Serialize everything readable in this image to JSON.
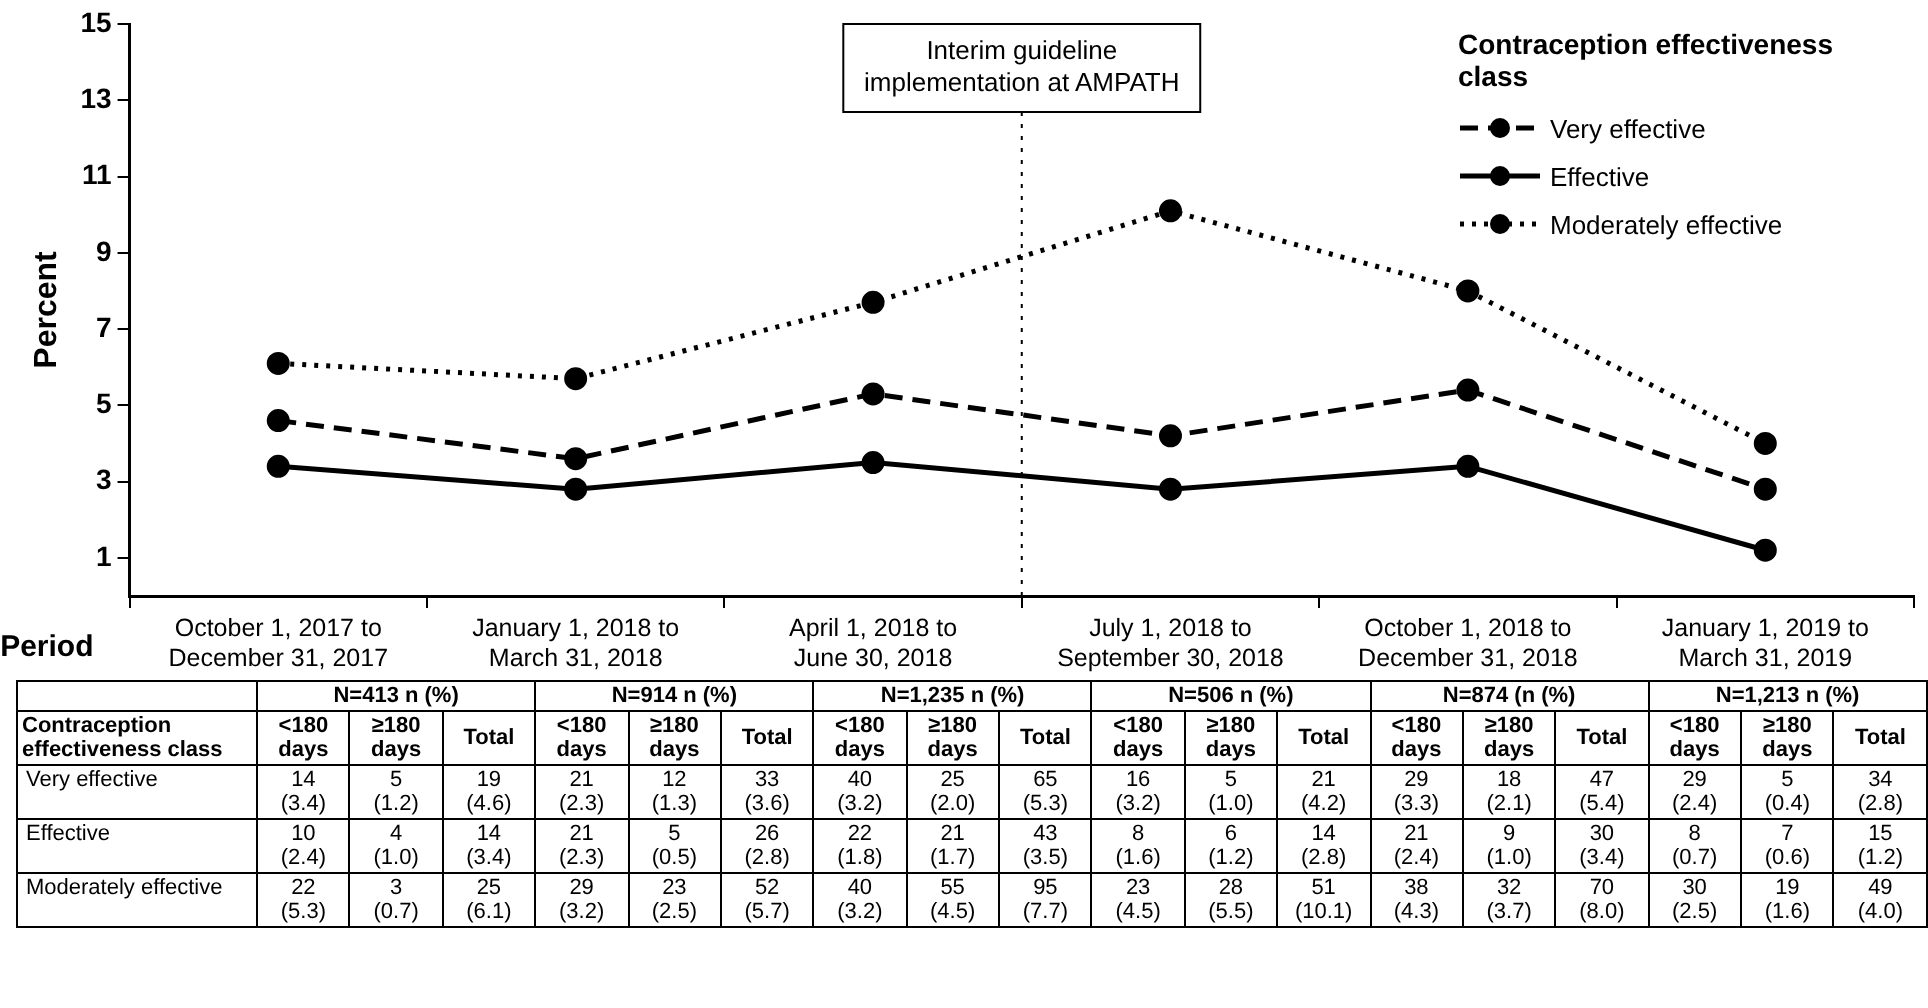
{
  "chart_data": {
    "type": "line",
    "ylabel": "Percent",
    "xlabel": "Period",
    "legend_title": "Contraception effectiveness class",
    "categories": [
      "October 1, 2017 to December 31, 2017",
      "January 1, 2018 to March 31, 2018",
      "April 1, 2018 to June 30, 2018",
      "July 1, 2018 to September 30, 2018",
      "October 1, 2018 to December 31, 2018",
      "January 1, 2019 to March 31, 2019"
    ],
    "series": [
      {
        "name": "Very effective",
        "color": "#000000",
        "line_style": "dashed",
        "values": [
          4.6,
          3.6,
          5.3,
          4.2,
          5.4,
          2.8
        ]
      },
      {
        "name": "Effective",
        "color": "#000000",
        "line_style": "solid",
        "values": [
          3.4,
          2.8,
          3.5,
          2.8,
          3.4,
          1.2
        ]
      },
      {
        "name": "Moderately effective",
        "color": "#000000",
        "line_style": "dotted",
        "values": [
          6.1,
          5.7,
          7.7,
          10.1,
          8.0,
          4.0
        ]
      }
    ],
    "ylim": [
      0,
      15
    ],
    "yticks": [
      1,
      3,
      5,
      7,
      9,
      11,
      13,
      15
    ],
    "grid": false,
    "legend": "top right",
    "marker": "circle",
    "annotations": [
      "Interim guideline implementation at AMPATH",
      "N=413 n (%)",
      "N=914 n (%)",
      "N=1,235 n (%)",
      "N=506 n (%)",
      "N=874 (n (%)",
      "N=1,213 n (%)",
      "Contraception effectiveness class",
      "<180 days",
      "≥180 days",
      "Total",
      "14 (3.4)",
      "5 (1.2)",
      "19 (4.6)",
      "21 (2.3)",
      "12 (1.3)",
      "33 (3.6)",
      "40 (3.2)",
      "25 (2.0)",
      "65 (5.3)",
      "16 (3.2)",
      "5 (1.0)",
      "21 (4.2)",
      "29 (3.3)",
      "18 (2.1)",
      "47 (5.4)",
      "29 (2.4)",
      "5 (0.4)",
      "34 (2.8)",
      "10 (2.4)",
      "4 (1.0)",
      "14 (3.4)",
      "21 (2.3)",
      "5 (0.5)",
      "26 (2.8)",
      "22 (1.8)",
      "21 (1.7)",
      "43 (3.5)",
      "8 (1.6)",
      "6 (1.2)",
      "14 (2.8)",
      "21 (2.4)",
      "9 (1.0)",
      "30 (3.4)",
      "8 (0.7)",
      "7 (0.6)",
      "15 (1.2)",
      "22 (5.3)",
      "3 (0.7)",
      "25 (6.1)",
      "29 (3.2)",
      "23 (2.5)",
      "52 (5.7)",
      "40 (3.2)",
      "55 (4.5)",
      "95 (7.7)",
      "23 (4.5)",
      "28 (5.5)",
      "51 (10.1)",
      "38 (4.3)",
      "32 (3.7)",
      "70 (8.0)",
      "30 (2.5)",
      "19 (1.6)",
      "49 (4.0)"
    ]
  }
}
